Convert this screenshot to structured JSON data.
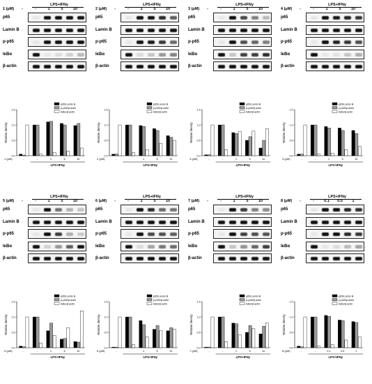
{
  "condition_label": "LPS+IFNγ",
  "band_labels": [
    "p65",
    "Lamin B",
    "p-p65",
    "IκBα",
    "β-actin"
  ],
  "legend": [
    "p65/Lamin B",
    "p-p65/β-actin",
    "IκBα/β-actin"
  ],
  "ylabel": "Relative density",
  "colors": {
    "series1": "#000000",
    "series2": "#9a9a9a",
    "series3": "#ffffff"
  },
  "chart_data": [
    {
      "type": "bar",
      "compound": "1 (μM)",
      "doses": [
        "-",
        "-",
        "1",
        "5",
        "10"
      ],
      "ylim": [
        0,
        1.5
      ],
      "series": [
        {
          "name": "p65/Lamin B",
          "values": [
            0.05,
            1.0,
            1.1,
            1.05,
            0.98
          ]
        },
        {
          "name": "p-p65/β-actin",
          "values": [
            0.02,
            1.0,
            1.12,
            1.0,
            1.05
          ]
        },
        {
          "name": "IκBα/β-actin",
          "values": [
            1.0,
            0.05,
            0.1,
            0.15,
            0.25
          ]
        }
      ]
    },
    {
      "type": "bar",
      "compound": "2 (μM)",
      "doses": [
        "-",
        "-",
        "1",
        "5",
        "10"
      ],
      "ylim": [
        0,
        1.5
      ],
      "series": [
        {
          "name": "p65/Lamin B",
          "values": [
            0.05,
            1.0,
            0.98,
            0.88,
            0.65
          ]
        },
        {
          "name": "p-p65/β-actin",
          "values": [
            0.05,
            1.0,
            0.95,
            0.82,
            0.6
          ]
        },
        {
          "name": "IκBα/β-actin",
          "values": [
            1.0,
            0.1,
            0.2,
            0.4,
            0.5
          ]
        }
      ]
    },
    {
      "type": "bar",
      "compound": "3 (μM)",
      "doses": [
        "-",
        "-",
        "1",
        "5",
        "10"
      ],
      "ylim": [
        0,
        1.5
      ],
      "series": [
        {
          "name": "p65/Lamin B",
          "values": [
            0.03,
            1.0,
            0.75,
            0.5,
            0.25
          ]
        },
        {
          "name": "p-p65/β-actin",
          "values": [
            0.03,
            1.0,
            0.72,
            0.62,
            0.5
          ]
        },
        {
          "name": "IκBα/β-actin",
          "values": [
            1.0,
            0.2,
            0.78,
            0.8,
            0.88
          ]
        }
      ]
    },
    {
      "type": "bar",
      "compound": "4 (μM)",
      "doses": [
        "-",
        "-",
        "1",
        "5",
        "10"
      ],
      "ylim": [
        0,
        1.5
      ],
      "series": [
        {
          "name": "p65/Lamin B",
          "values": [
            0.05,
            1.0,
            0.95,
            0.9,
            0.82
          ]
        },
        {
          "name": "p-p65/β-actin",
          "values": [
            0.05,
            1.0,
            0.9,
            0.82,
            0.72
          ]
        },
        {
          "name": "IκBα/β-actin",
          "values": [
            1.0,
            0.05,
            0.08,
            0.2,
            0.3
          ]
        }
      ]
    },
    {
      "type": "bar",
      "compound": "5 (μM)",
      "doses": [
        "-",
        "-",
        "1",
        "5",
        "10"
      ],
      "ylim": [
        0,
        1.5
      ],
      "series": [
        {
          "name": "p65/Lamin B",
          "values": [
            0.05,
            1.0,
            0.55,
            0.28,
            0.2
          ]
        },
        {
          "name": "p-p65/β-actin",
          "values": [
            0.03,
            1.0,
            0.8,
            0.3,
            0.18
          ]
        },
        {
          "name": "IκBα/β-actin",
          "values": [
            1.0,
            0.15,
            0.4,
            0.65,
            1.2
          ]
        }
      ]
    },
    {
      "type": "bar",
      "compound": "6 (μM)",
      "doses": [
        "-",
        "-",
        "1",
        "5",
        "10"
      ],
      "ylim": [
        0,
        1.5
      ],
      "series": [
        {
          "name": "p65/Lamin B",
          "values": [
            0.02,
            1.0,
            0.88,
            0.6,
            0.55
          ]
        },
        {
          "name": "p-p65/β-actin",
          "values": [
            0.02,
            1.0,
            0.75,
            0.72,
            0.65
          ]
        },
        {
          "name": "IκBα/β-actin",
          "values": [
            1.0,
            0.1,
            0.35,
            0.55,
            0.6
          ]
        }
      ]
    },
    {
      "type": "bar",
      "compound": "7 (μM)",
      "doses": [
        "-",
        "-",
        "1",
        "5",
        "10"
      ],
      "ylim": [
        0,
        1.5
      ],
      "series": [
        {
          "name": "p65/Lamin B",
          "values": [
            0.02,
            1.0,
            0.8,
            0.5,
            0.45
          ]
        },
        {
          "name": "p-p65/β-actin",
          "values": [
            0.02,
            1.0,
            0.78,
            0.72,
            0.7
          ]
        },
        {
          "name": "IκBα/β-actin",
          "values": [
            1.0,
            0.2,
            0.42,
            0.62,
            0.8
          ]
        }
      ]
    },
    {
      "type": "bar",
      "compound": "8 (μM)",
      "doses": [
        "-",
        "-",
        "0.1",
        "0.5",
        "1"
      ],
      "ylim": [
        0,
        1.5
      ],
      "series": [
        {
          "name": "p65/Lamin B",
          "values": [
            0.05,
            1.0,
            1.05,
            0.9,
            0.85
          ]
        },
        {
          "name": "p-p65/β-actin",
          "values": [
            0.03,
            1.0,
            1.02,
            0.88,
            0.82
          ]
        },
        {
          "name": "IκBα/β-actin",
          "values": [
            1.0,
            0.05,
            0.1,
            0.25,
            0.35
          ]
        }
      ]
    }
  ]
}
